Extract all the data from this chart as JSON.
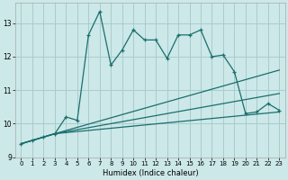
{
  "xlabel": "Humidex (Indice chaleur)",
  "bg_color": "#cce8e8",
  "grid_color": "#aacccc",
  "line_color": "#1a6e6e",
  "xlim": [
    -0.5,
    23.5
  ],
  "ylim": [
    9.0,
    13.6
  ],
  "yticks": [
    9,
    10,
    11,
    12,
    13
  ],
  "xticks": [
    0,
    1,
    2,
    3,
    4,
    5,
    6,
    7,
    8,
    9,
    10,
    11,
    12,
    13,
    14,
    15,
    16,
    17,
    18,
    19,
    20,
    21,
    22,
    23
  ],
  "series1_x": [
    0,
    1,
    2,
    3,
    4,
    5,
    6,
    7,
    8,
    9,
    10,
    11,
    12,
    13,
    14,
    15,
    16,
    17,
    18,
    19,
    20,
    21,
    22,
    23
  ],
  "series1_y": [
    9.4,
    9.5,
    9.6,
    9.7,
    10.2,
    10.1,
    12.65,
    13.35,
    11.75,
    12.2,
    12.8,
    12.5,
    12.5,
    11.95,
    12.65,
    12.65,
    12.8,
    12.0,
    12.05,
    11.55,
    10.3,
    10.35,
    10.6,
    10.4
  ],
  "series2_x": [
    0,
    3,
    23
  ],
  "series2_y": [
    9.4,
    9.7,
    11.6
  ],
  "series3_x": [
    0,
    3,
    23
  ],
  "series3_y": [
    9.4,
    9.7,
    10.9
  ],
  "series4_x": [
    0,
    3,
    23
  ],
  "series4_y": [
    9.4,
    9.7,
    10.35
  ]
}
